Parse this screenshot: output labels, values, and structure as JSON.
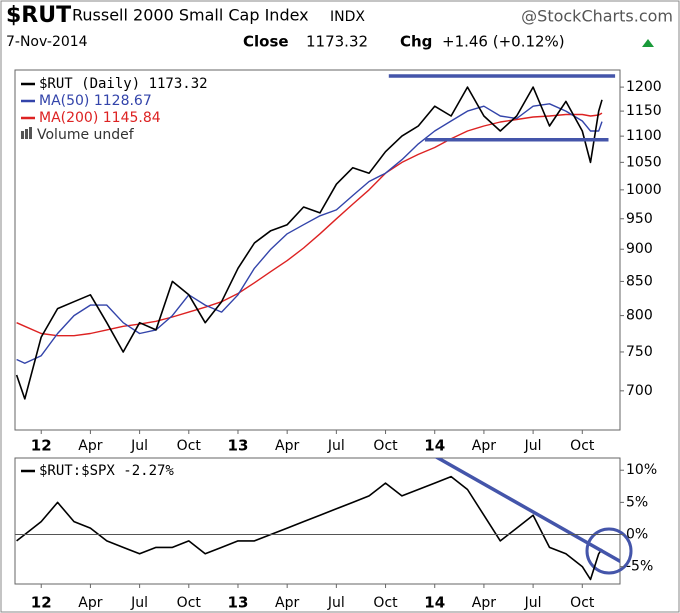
{
  "header": {
    "symbol": "$RUT",
    "name": "Russell 2000 Small Cap Index",
    "exchange": "INDX",
    "source": "@StockCharts.com",
    "date": "7-Nov-2014",
    "close_label": "Close",
    "close": "1173.32",
    "chg_label": "Chg",
    "chg": "+1.46 (+0.12%)"
  },
  "chart_data": [
    {
      "type": "line",
      "log_scale": true,
      "grid": false,
      "x": [
        -1.5,
        -1,
        0,
        1,
        2,
        3,
        4,
        5,
        6,
        7,
        8,
        9,
        10,
        11,
        12,
        13,
        14,
        15,
        16,
        17,
        18,
        19,
        20,
        21,
        22,
        23,
        24,
        25,
        26,
        27,
        28,
        29,
        30,
        31,
        32,
        33,
        33.5,
        34,
        34.2
      ],
      "series": [
        {
          "name": "$RUT (Daily) 1173.32",
          "color": "#000000",
          "width": 1.6,
          "values": [
            720,
            690,
            770,
            810,
            820,
            830,
            790,
            750,
            790,
            780,
            850,
            830,
            790,
            820,
            870,
            910,
            930,
            940,
            970,
            960,
            1010,
            1040,
            1030,
            1070,
            1100,
            1120,
            1160,
            1140,
            1200,
            1140,
            1110,
            1140,
            1200,
            1120,
            1170,
            1110,
            1050,
            1150,
            1173.32
          ]
        },
        {
          "name": "MA(50) 1128.67",
          "color": "#3344aa",
          "width": 1.4,
          "values": [
            740,
            735,
            745,
            775,
            800,
            815,
            815,
            790,
            775,
            780,
            800,
            830,
            815,
            805,
            830,
            870,
            900,
            925,
            940,
            955,
            965,
            990,
            1015,
            1030,
            1055,
            1085,
            1110,
            1130,
            1150,
            1160,
            1140,
            1135,
            1160,
            1165,
            1150,
            1130,
            1110,
            1110,
            1128.67
          ]
        },
        {
          "name": "MA(200) 1145.84",
          "color": "#dd2222",
          "width": 1.4,
          "values": [
            790,
            785,
            775,
            772,
            772,
            775,
            780,
            785,
            788,
            792,
            798,
            805,
            812,
            820,
            832,
            848,
            865,
            882,
            902,
            925,
            950,
            975,
            1000,
            1030,
            1050,
            1065,
            1078,
            1095,
            1110,
            1120,
            1128,
            1133,
            1138,
            1140,
            1143,
            1143,
            1140,
            1142,
            1145.84
          ]
        }
      ],
      "volume_label": "Volume undef",
      "annotations": [
        {
          "color": "#4455aa",
          "x": [
            21.2,
            35
          ],
          "values": [
            1224,
            1224
          ]
        },
        {
          "color": "#4455aa",
          "x": [
            23.4,
            34.6
          ],
          "values": [
            1093,
            1093
          ]
        }
      ],
      "xlim": [
        -1.6,
        35.3
      ],
      "ylim": [
        653,
        1237
      ],
      "xticks": [
        {
          "value": 0,
          "label": "12"
        },
        {
          "value": 3,
          "label": "Apr"
        },
        {
          "value": 6,
          "label": "Jul"
        },
        {
          "value": 9,
          "label": "Oct"
        },
        {
          "value": 12,
          "label": "13"
        },
        {
          "value": 15,
          "label": "Apr"
        },
        {
          "value": 18,
          "label": "Jul"
        },
        {
          "value": 21,
          "label": "Oct"
        },
        {
          "value": 24,
          "label": "14"
        },
        {
          "value": 27,
          "label": "Apr"
        },
        {
          "value": 30,
          "label": "Jul"
        },
        {
          "value": 33,
          "label": "Oct"
        }
      ],
      "yticks": [
        700,
        750,
        800,
        850,
        900,
        950,
        1000,
        1050,
        1100,
        1150,
        1200
      ]
    },
    {
      "type": "line",
      "log_scale": false,
      "zero_line": true,
      "x": [
        -1.5,
        -1,
        0,
        1,
        2,
        3,
        4,
        5,
        6,
        7,
        8,
        9,
        10,
        11,
        12,
        13,
        14,
        15,
        16,
        17,
        18,
        19,
        20,
        21,
        22,
        23,
        24,
        25,
        26,
        27,
        28,
        29,
        30,
        31,
        32,
        33,
        33.5,
        34,
        34.2
      ],
      "series": [
        {
          "name": "$RUT:$SPX -2.27%",
          "color": "#000000",
          "width": 1.6,
          "values": [
            -1,
            0,
            2,
            5,
            2,
            1,
            -1,
            -2,
            -3,
            -2,
            -2,
            -1,
            -3,
            -2,
            -1,
            -1,
            0,
            1,
            2,
            3,
            4,
            5,
            6,
            8,
            6,
            7,
            8,
            9,
            7,
            3,
            -1,
            1,
            3,
            -2,
            -3,
            -5,
            -7,
            -3,
            -2.27
          ]
        }
      ],
      "annotations": [
        {
          "color": "#4455aa",
          "x": [
            24,
            36.5
          ],
          "values": [
            12.2,
            -5.9
          ]
        }
      ],
      "xlim": [
        -1.6,
        35.3
      ],
      "ylim": [
        -7.7,
        11.9
      ],
      "xticks": [
        {
          "value": 0,
          "label": "12"
        },
        {
          "value": 3,
          "label": "Apr"
        },
        {
          "value": 6,
          "label": "Jul"
        },
        {
          "value": 9,
          "label": "Oct"
        },
        {
          "value": 12,
          "label": "13"
        },
        {
          "value": 15,
          "label": "Apr"
        },
        {
          "value": 18,
          "label": "Jul"
        },
        {
          "value": 21,
          "label": "Oct"
        },
        {
          "value": 24,
          "label": "14"
        },
        {
          "value": 27,
          "label": "Apr"
        },
        {
          "value": 30,
          "label": "Jul"
        },
        {
          "value": 33,
          "label": "Oct"
        }
      ],
      "yticks": [
        {
          "value": 10,
          "label": "10%"
        },
        {
          "value": 5,
          "label": "5%"
        },
        {
          "value": 0,
          "label": "0%"
        },
        {
          "value": -5,
          "label": "-5%"
        }
      ]
    }
  ]
}
